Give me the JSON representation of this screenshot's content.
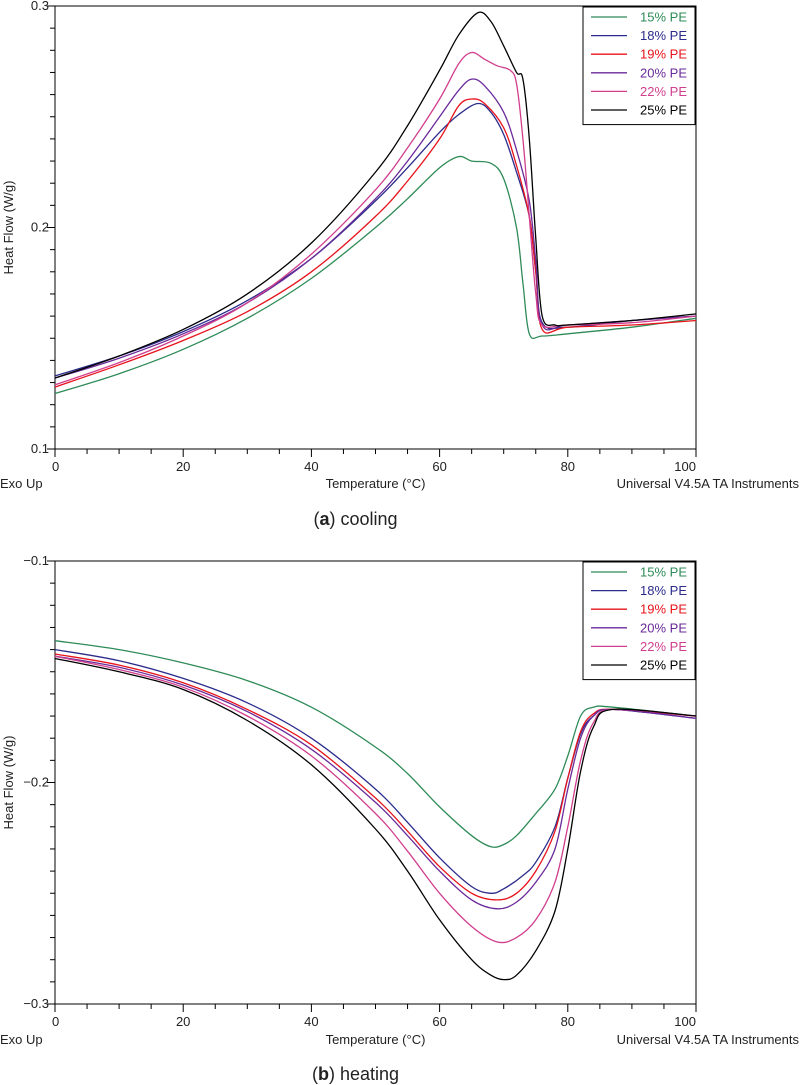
{
  "chart_data": [
    {
      "type": "line",
      "caption_letter": "a",
      "caption_text": " cooling",
      "xlabel": "Temperature (°C)",
      "ylabel": "Heat Flow (W/g)",
      "left_note": "Exo Up",
      "right_note": "Universal V4.5A TA Instruments",
      "xlim": [
        0,
        100
      ],
      "ylim": [
        0.1,
        0.3
      ],
      "x_ticks": [
        0,
        20,
        40,
        60,
        80,
        100
      ],
      "y_ticks": [
        0.1,
        0.2,
        0.3
      ],
      "y_tick_labels": [
        "0.1",
        "0.2",
        "0.3"
      ],
      "grid": false,
      "legend_placement": "top-right",
      "series": [
        {
          "name": "15% PE",
          "color": "#2e8b57",
          "points": [
            [
              0,
              0.125
            ],
            [
              10,
              0.134
            ],
            [
              20,
              0.145
            ],
            [
              30,
              0.159
            ],
            [
              40,
              0.177
            ],
            [
              50,
              0.2
            ],
            [
              55,
              0.213
            ],
            [
              60,
              0.227
            ],
            [
              63,
              0.232
            ],
            [
              65,
              0.23
            ],
            [
              68,
              0.229
            ],
            [
              70,
              0.222
            ],
            [
              72,
              0.2
            ],
            [
              73,
              0.175
            ],
            [
              74,
              0.152
            ],
            [
              76,
              0.151
            ],
            [
              80,
              0.152
            ],
            [
              90,
              0.155
            ],
            [
              100,
              0.159
            ]
          ]
        },
        {
          "name": "18% PE",
          "color": "#2b2b8c",
          "points": [
            [
              0,
              0.133
            ],
            [
              10,
              0.142
            ],
            [
              20,
              0.153
            ],
            [
              30,
              0.167
            ],
            [
              40,
              0.186
            ],
            [
              50,
              0.212
            ],
            [
              55,
              0.227
            ],
            [
              60,
              0.243
            ],
            [
              63,
              0.251
            ],
            [
              66,
              0.256
            ],
            [
              68,
              0.252
            ],
            [
              70,
              0.242
            ],
            [
              72,
              0.225
            ],
            [
              74,
              0.205
            ],
            [
              75,
              0.18
            ],
            [
              76,
              0.157
            ],
            [
              80,
              0.155
            ],
            [
              90,
              0.158
            ],
            [
              100,
              0.16
            ]
          ]
        },
        {
          "name": "19% PE",
          "color": "#e8131b",
          "points": [
            [
              0,
              0.128
            ],
            [
              10,
              0.138
            ],
            [
              20,
              0.149
            ],
            [
              30,
              0.162
            ],
            [
              40,
              0.18
            ],
            [
              50,
              0.205
            ],
            [
              55,
              0.221
            ],
            [
              60,
              0.24
            ],
            [
              63,
              0.255
            ],
            [
              65,
              0.258
            ],
            [
              67,
              0.256
            ],
            [
              70,
              0.245
            ],
            [
              72,
              0.228
            ],
            [
              74,
              0.205
            ],
            [
              75,
              0.18
            ],
            [
              76,
              0.154
            ],
            [
              80,
              0.155
            ],
            [
              90,
              0.156
            ],
            [
              100,
              0.158
            ]
          ]
        },
        {
          "name": "20% PE",
          "color": "#6a2a9a",
          "points": [
            [
              0,
              0.132
            ],
            [
              10,
              0.141
            ],
            [
              20,
              0.152
            ],
            [
              30,
              0.166
            ],
            [
              40,
              0.186
            ],
            [
              50,
              0.213
            ],
            [
              55,
              0.23
            ],
            [
              60,
              0.25
            ],
            [
              63,
              0.262
            ],
            [
              65,
              0.267
            ],
            [
              67,
              0.264
            ],
            [
              70,
              0.252
            ],
            [
              72,
              0.235
            ],
            [
              74,
              0.212
            ],
            [
              75,
              0.185
            ],
            [
              76,
              0.156
            ],
            [
              80,
              0.156
            ],
            [
              90,
              0.158
            ],
            [
              100,
              0.16
            ]
          ]
        },
        {
          "name": "22% PE",
          "color": "#d13e8e",
          "points": [
            [
              0,
              0.129
            ],
            [
              10,
              0.139
            ],
            [
              20,
              0.151
            ],
            [
              30,
              0.166
            ],
            [
              40,
              0.188
            ],
            [
              50,
              0.217
            ],
            [
              55,
              0.236
            ],
            [
              60,
              0.258
            ],
            [
              63,
              0.274
            ],
            [
              65,
              0.279
            ],
            [
              67,
              0.276
            ],
            [
              69,
              0.273
            ],
            [
              71,
              0.271
            ],
            [
              72,
              0.265
            ],
            [
              73,
              0.24
            ],
            [
              74,
              0.205
            ],
            [
              75,
              0.17
            ],
            [
              76,
              0.156
            ],
            [
              80,
              0.156
            ],
            [
              90,
              0.157
            ],
            [
              100,
              0.16
            ]
          ]
        },
        {
          "name": "25% PE",
          "color": "#000000",
          "points": [
            [
              0,
              0.132
            ],
            [
              10,
              0.142
            ],
            [
              20,
              0.154
            ],
            [
              30,
              0.17
            ],
            [
              40,
              0.193
            ],
            [
              50,
              0.225
            ],
            [
              55,
              0.246
            ],
            [
              60,
              0.271
            ],
            [
              63,
              0.287
            ],
            [
              66,
              0.297
            ],
            [
              68,
              0.293
            ],
            [
              70,
              0.282
            ],
            [
              72,
              0.27
            ],
            [
              73,
              0.267
            ],
            [
              74,
              0.24
            ],
            [
              75,
              0.195
            ],
            [
              76,
              0.16
            ],
            [
              78,
              0.156
            ],
            [
              80,
              0.156
            ],
            [
              90,
              0.158
            ],
            [
              100,
              0.161
            ]
          ]
        }
      ]
    },
    {
      "type": "line",
      "caption_letter": "b",
      "caption_text": " heating",
      "xlabel": "Temperature (°C)",
      "ylabel": "Heat Flow (W/g)",
      "left_note": "Exo Up",
      "right_note": "Universal V4.5A TA Instruments",
      "xlim": [
        0,
        100
      ],
      "ylim": [
        -0.3,
        -0.1
      ],
      "x_ticks": [
        0,
        20,
        40,
        60,
        80,
        100
      ],
      "y_ticks": [
        -0.3,
        -0.2,
        -0.1
      ],
      "y_tick_labels": [
        "−0.3",
        "−0.2",
        "−0.1"
      ],
      "grid": false,
      "legend_placement": "top-right",
      "series": [
        {
          "name": "15% PE",
          "color": "#2e8b57",
          "points": [
            [
              0,
              -0.136
            ],
            [
              10,
              -0.14
            ],
            [
              20,
              -0.146
            ],
            [
              30,
              -0.154
            ],
            [
              40,
              -0.166
            ],
            [
              50,
              -0.184
            ],
            [
              55,
              -0.196
            ],
            [
              60,
              -0.211
            ],
            [
              65,
              -0.224
            ],
            [
              68,
              -0.229
            ],
            [
              70,
              -0.228
            ],
            [
              72,
              -0.224
            ],
            [
              75,
              -0.214
            ],
            [
              78,
              -0.203
            ],
            [
              80,
              -0.188
            ],
            [
              82,
              -0.17
            ],
            [
              84,
              -0.166
            ],
            [
              87,
              -0.166
            ],
            [
              100,
              -0.17
            ]
          ]
        },
        {
          "name": "18% PE",
          "color": "#2b2b8c",
          "points": [
            [
              0,
              -0.14
            ],
            [
              10,
              -0.145
            ],
            [
              20,
              -0.153
            ],
            [
              30,
              -0.164
            ],
            [
              40,
              -0.18
            ],
            [
              50,
              -0.203
            ],
            [
              55,
              -0.218
            ],
            [
              60,
              -0.234
            ],
            [
              65,
              -0.247
            ],
            [
              68,
              -0.25
            ],
            [
              70,
              -0.248
            ],
            [
              73,
              -0.242
            ],
            [
              75,
              -0.236
            ],
            [
              78,
              -0.22
            ],
            [
              80,
              -0.198
            ],
            [
              82,
              -0.178
            ],
            [
              84,
              -0.17
            ],
            [
              87,
              -0.167
            ],
            [
              100,
              -0.171
            ]
          ]
        },
        {
          "name": "19% PE",
          "color": "#e8131b",
          "points": [
            [
              0,
              -0.142
            ],
            [
              10,
              -0.147
            ],
            [
              20,
              -0.155
            ],
            [
              30,
              -0.167
            ],
            [
              40,
              -0.183
            ],
            [
              50,
              -0.207
            ],
            [
              55,
              -0.222
            ],
            [
              60,
              -0.238
            ],
            [
              65,
              -0.25
            ],
            [
              69,
              -0.253
            ],
            [
              72,
              -0.25
            ],
            [
              75,
              -0.24
            ],
            [
              78,
              -0.222
            ],
            [
              80,
              -0.198
            ],
            [
              82,
              -0.177
            ],
            [
              84,
              -0.169
            ],
            [
              87,
              -0.167
            ],
            [
              100,
              -0.17
            ]
          ]
        },
        {
          "name": "20% PE",
          "color": "#6a2a9a",
          "points": [
            [
              0,
              -0.143
            ],
            [
              10,
              -0.148
            ],
            [
              20,
              -0.156
            ],
            [
              30,
              -0.168
            ],
            [
              40,
              -0.185
            ],
            [
              50,
              -0.209
            ],
            [
              55,
              -0.224
            ],
            [
              60,
              -0.24
            ],
            [
              65,
              -0.253
            ],
            [
              69,
              -0.257
            ],
            [
              72,
              -0.254
            ],
            [
              75,
              -0.245
            ],
            [
              78,
              -0.23
            ],
            [
              80,
              -0.203
            ],
            [
              82,
              -0.18
            ],
            [
              84,
              -0.17
            ],
            [
              87,
              -0.167
            ],
            [
              100,
              -0.171
            ]
          ]
        },
        {
          "name": "22% PE",
          "color": "#d13e8e",
          "points": [
            [
              0,
              -0.143
            ],
            [
              10,
              -0.149
            ],
            [
              20,
              -0.157
            ],
            [
              30,
              -0.17
            ],
            [
              40,
              -0.188
            ],
            [
              50,
              -0.214
            ],
            [
              55,
              -0.231
            ],
            [
              60,
              -0.25
            ],
            [
              65,
              -0.265
            ],
            [
              69,
              -0.272
            ],
            [
              72,
              -0.27
            ],
            [
              75,
              -0.262
            ],
            [
              78,
              -0.245
            ],
            [
              80,
              -0.22
            ],
            [
              82,
              -0.19
            ],
            [
              84,
              -0.173
            ],
            [
              87,
              -0.167
            ],
            [
              100,
              -0.17
            ]
          ]
        },
        {
          "name": "25% PE",
          "color": "#000000",
          "points": [
            [
              0,
              -0.144
            ],
            [
              10,
              -0.15
            ],
            [
              20,
              -0.158
            ],
            [
              30,
              -0.172
            ],
            [
              40,
              -0.192
            ],
            [
              50,
              -0.221
            ],
            [
              55,
              -0.24
            ],
            [
              60,
              -0.262
            ],
            [
              65,
              -0.28
            ],
            [
              68,
              -0.287
            ],
            [
              70,
              -0.289
            ],
            [
              72,
              -0.287
            ],
            [
              75,
              -0.276
            ],
            [
              78,
              -0.258
            ],
            [
              80,
              -0.23
            ],
            [
              82,
              -0.195
            ],
            [
              84,
              -0.175
            ],
            [
              87,
              -0.167
            ],
            [
              100,
              -0.17
            ]
          ]
        }
      ]
    }
  ]
}
